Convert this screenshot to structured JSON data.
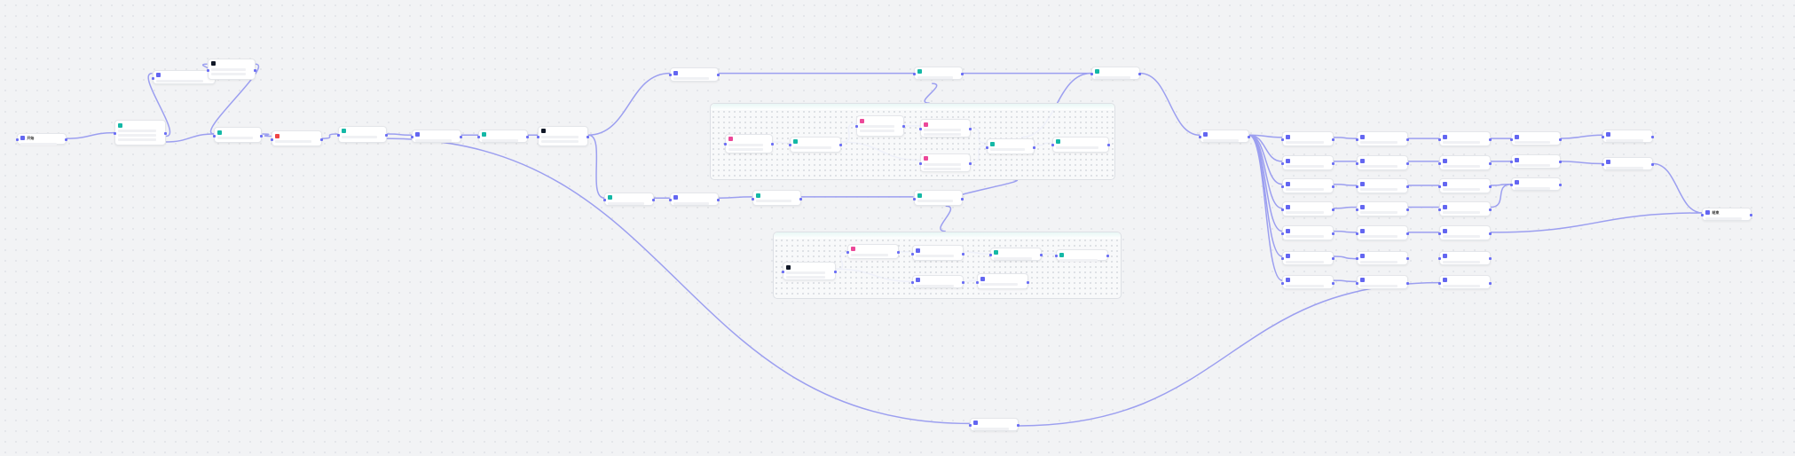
{
  "canvas": {
    "type": "workflow-editor",
    "edge_color": "#9c9ff0",
    "background": "#f2f3f5"
  },
  "colors": {
    "start": "#6366f1",
    "logic": "#14b8a6",
    "code": "#111827",
    "llm": "#6366f1",
    "http": "#ef4444",
    "tool": "#ec4899"
  },
  "nodes": {
    "start": "开始",
    "end": "结束"
  }
}
